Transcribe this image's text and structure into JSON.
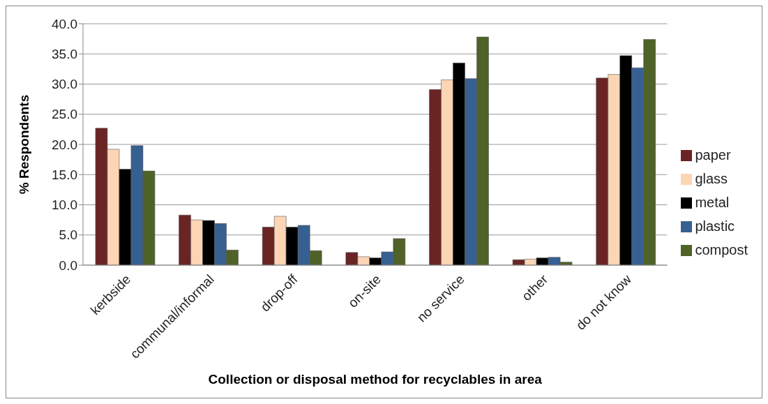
{
  "chart_data": {
    "type": "bar",
    "xlabel": "Collection or disposal  method for recyclables in area",
    "ylabel": "% Respondents",
    "categories": [
      "kerbside",
      "communal/informal",
      "drop-off",
      "on-site",
      "no service",
      "other",
      "do not know"
    ],
    "series": [
      {
        "name": "paper",
        "color": "#6b2424",
        "values": [
          22.7,
          8.3,
          6.3,
          2.1,
          29.1,
          0.9,
          31.0
        ]
      },
      {
        "name": "glass",
        "color": "#fcd5b5",
        "values": [
          19.2,
          7.5,
          8.1,
          1.4,
          30.7,
          1.0,
          31.6
        ]
      },
      {
        "name": "metal",
        "color": "#000000",
        "values": [
          15.9,
          7.4,
          6.3,
          1.2,
          33.5,
          1.2,
          34.7
        ]
      },
      {
        "name": "plastic",
        "color": "#376092",
        "values": [
          19.8,
          6.9,
          6.6,
          2.2,
          30.9,
          1.3,
          32.7
        ]
      },
      {
        "name": "compost",
        "color": "#4f6228",
        "values": [
          15.6,
          2.5,
          2.4,
          4.4,
          37.8,
          0.5,
          37.4
        ]
      }
    ],
    "ylim": [
      0,
      40
    ],
    "yticks": [
      {
        "value": 0,
        "label": "0.0"
      },
      {
        "value": 5,
        "label": "5.0"
      },
      {
        "value": 10,
        "label": "10.0"
      },
      {
        "value": 15,
        "label": "15.0"
      },
      {
        "value": 20,
        "label": "20.0"
      },
      {
        "value": 25,
        "label": "25.0"
      },
      {
        "value": 30,
        "label": "30.0"
      },
      {
        "value": 35,
        "label": "35.0"
      },
      {
        "value": 40,
        "label": "40.0"
      }
    ],
    "grid": "y",
    "legend": "right"
  }
}
